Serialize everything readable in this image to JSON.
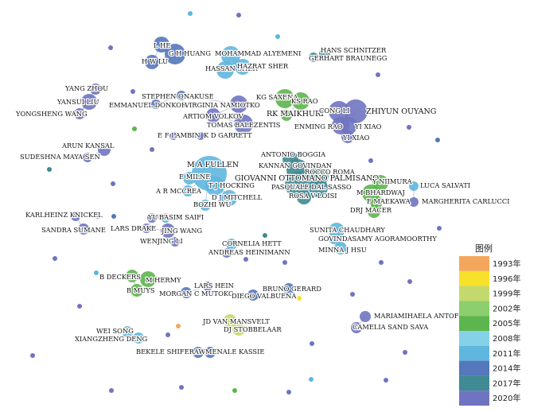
{
  "legend": {
    "title": "图例",
    "items": [
      {
        "label": "1993年",
        "color": "#f4a65c"
      },
      {
        "label": "1996年",
        "color": "#f7e12a"
      },
      {
        "label": "1999年",
        "color": "#c3d96b"
      },
      {
        "label": "2002年",
        "color": "#8ccf6e"
      },
      {
        "label": "2005年",
        "color": "#5db54e"
      },
      {
        "label": "2008年",
        "color": "#85d2e8"
      },
      {
        "label": "2011年",
        "color": "#5fb6de"
      },
      {
        "label": "2014年",
        "color": "#5577bb"
      },
      {
        "label": "2017年",
        "color": "#3f8a93"
      },
      {
        "label": "2020年",
        "color": "#7074c0"
      }
    ]
  },
  "authors": [
    "L HE",
    "G H HUANG",
    "H W LU",
    "MOHAMMAD ALYEMENI",
    "HANS SCHNITZER",
    "GERHART BRAUNEGG",
    "HASSAN SHER",
    "HAZRAT SHER",
    "YANG ZHOU",
    "YANSUI LIU",
    "YONGSHENG WANG",
    "STEPHEN ONAKUSE",
    "EMMANUEL DONKOR",
    "VIRGINIA NAMIOTKO",
    "ARTIOM VOLKOV",
    "TOMAS BALEZENTIS",
    "KG SAXENA",
    "KS RAO",
    "RK MAIKHURI",
    "CONG LI",
    "ZHIYUN OUYANG",
    "ENMING RAO",
    "YI XIAO",
    "YI XIAO",
    "E F LAMBIN",
    "K D GARRETT",
    "ARUN KANSAL",
    "SUDESHNA MAYA SEN",
    "M A FULLEN",
    "E MILNE",
    "T J HOCKING",
    "A R MCCREA",
    "D J MITCHELL",
    "BOZHI WU",
    "ANTONIO BOGGIA",
    "KANNAN GOVINDAN",
    "ROCCO ROMA",
    "GIOVANNI OTTOMANO PALMISANO",
    "PASQUALE DAL SASSO",
    "ROSA V LOISI",
    "Y NIIMURA",
    "M BHARDWAJ",
    "F MAEKAWA",
    "DRJ MACER",
    "LUCA SALVATI",
    "MARGHERITA CARLUCCI",
    "KARLHEINZ KNICKEL",
    "SANDRA SUMANE",
    "YURUI LI",
    "BASIM SAIFI",
    "LARS DRAKE",
    "JING WANG",
    "WENJING LI",
    "CORNELIA HETT",
    "ANDREAS HEINIMANN",
    "SUNITA CHAUDHARY",
    "GOVINDASAMY AGORAMOORTHY",
    "MINNA J HSU",
    "B DECKERS",
    "M HERMY",
    "B MUYS",
    "LARS HEIN",
    "MORGAN C MUTOKO",
    "BRUNO GERARD",
    "DIEGO VALBUENA",
    "JD VAN MANSVELT",
    "DJ STOBBELAAR",
    "MARIAMIHAELA ANTOFIE",
    "CAMELIA SAND SAVA",
    "WEI SONG",
    "XIANGZHENG DENG",
    "BEKELE SHIFERAW",
    "MENALE KASSIE"
  ]
}
